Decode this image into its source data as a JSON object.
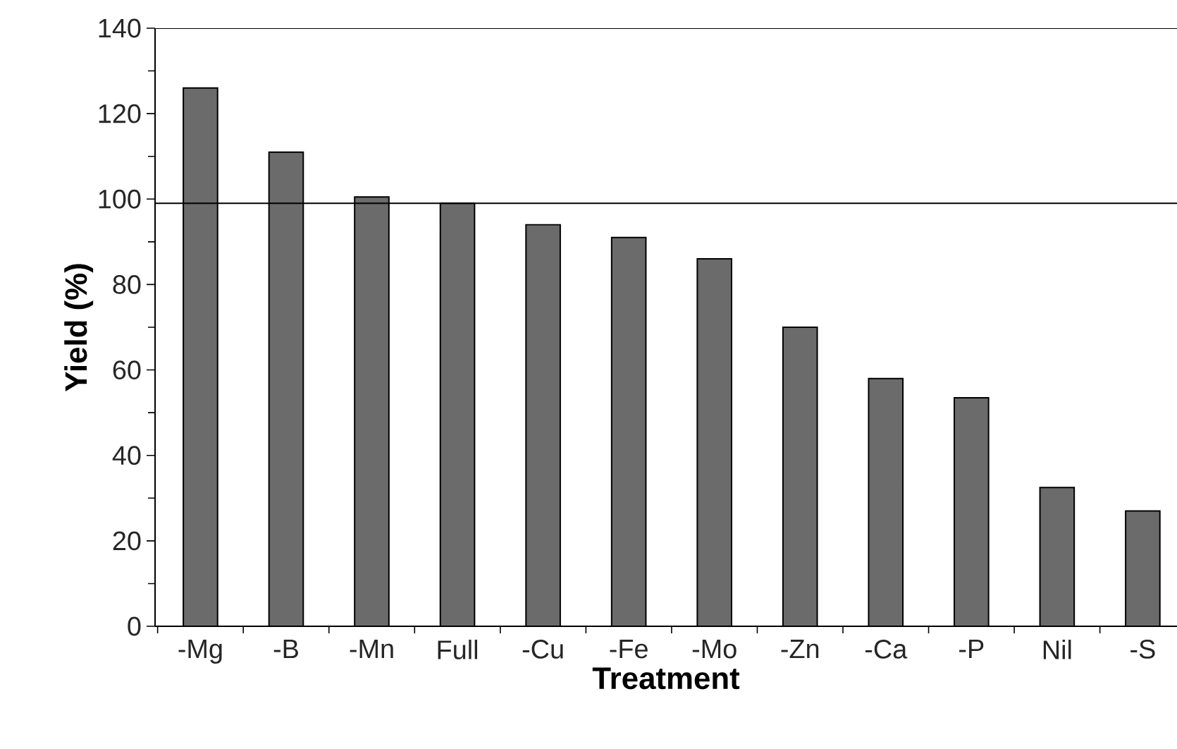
{
  "chart_data": {
    "type": "bar",
    "xlabel": "Treatment",
    "ylabel": "Yield (%)",
    "categories": [
      "-Mg",
      "-B",
      "-Mn",
      "Full",
      "-Cu",
      "-Fe",
      "-Mo",
      "-Zn",
      "-Ca",
      "-P",
      "Nil",
      "-S"
    ],
    "values": [
      126,
      111,
      100.5,
      99,
      94,
      91,
      86,
      70,
      58,
      53.5,
      32.5,
      27
    ],
    "color": "#6b6b6b",
    "ylim": [
      0,
      140
    ],
    "yticks": [
      0,
      20,
      40,
      60,
      80,
      100,
      120,
      140
    ],
    "ref_lines": [
      {
        "axis": "y",
        "value": 99,
        "color": "#000000"
      }
    ],
    "grid": false
  }
}
